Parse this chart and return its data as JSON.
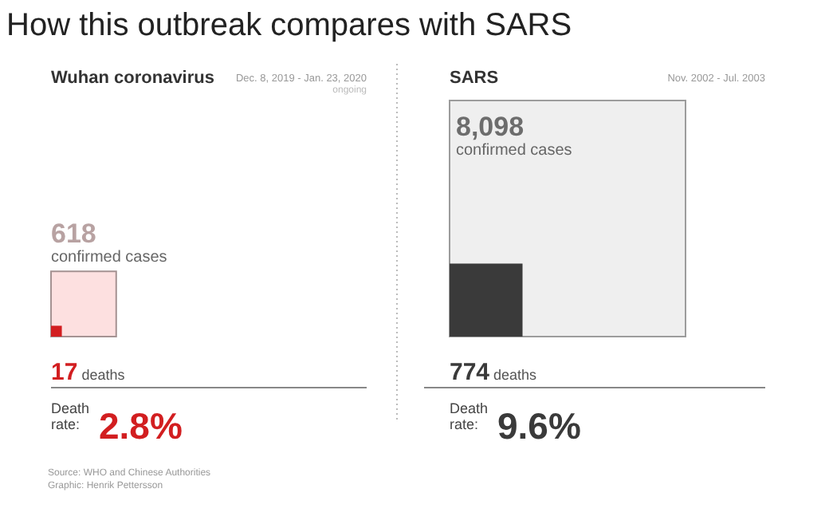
{
  "chart_data": [
    {
      "type": "other",
      "title": "How this outbreak compares with SARS",
      "annotations": [
        "Source: WHO and Chinese Authorities",
        "Graphic: Henrik Pettersson"
      ]
    },
    {
      "type": "other",
      "title": "Wuhan coronavirus",
      "subtitle": "Dec. 8, 2019 - Jan. 23, 2020",
      "categories": [
        "confirmed cases",
        "deaths"
      ],
      "values": [
        618,
        17
      ],
      "value_labels": [
        "618",
        "17"
      ],
      "colors": [
        "#fde0e0",
        "#d21e20"
      ],
      "annotations": [
        "ongoing",
        "Death rate:",
        "2.8%"
      ]
    },
    {
      "type": "other",
      "title": "SARS",
      "subtitle": "Nov. 2002 - Jul. 2003",
      "categories": [
        "confirmed cases",
        "deaths"
      ],
      "values": [
        8098,
        774
      ],
      "value_labels": [
        "8,098",
        "774"
      ],
      "colors": [
        "#efefef",
        "#3a3a3a"
      ],
      "annotations": [
        "Death rate:",
        "9.6%"
      ]
    }
  ]
}
